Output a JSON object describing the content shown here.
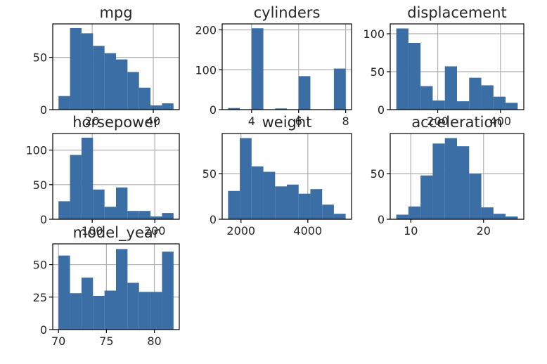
{
  "chart_data": [
    {
      "type": "bar",
      "title": "mpg",
      "bin_edges": [
        9.0,
        12.76,
        16.52,
        20.28,
        24.04,
        27.8,
        31.56,
        35.32,
        39.08,
        42.84,
        46.6
      ],
      "values": [
        13,
        78,
        73,
        61,
        54,
        48,
        36,
        21,
        4,
        6
      ],
      "xticks": [
        20,
        40
      ],
      "xtick_labels": [
        "20",
        "40"
      ],
      "yticks": [
        0,
        50
      ],
      "ytick_labels": [
        "0",
        "50"
      ],
      "xlim": [
        7.1,
        48.5
      ],
      "ylim": [
        0,
        82
      ],
      "grid": true
    },
    {
      "type": "bar",
      "title": "cylinders",
      "bin_edges": [
        3.0,
        3.5,
        4.0,
        4.5,
        5.0,
        5.5,
        6.0,
        6.5,
        7.0,
        7.5,
        8.0
      ],
      "values": [
        4,
        0,
        204,
        0,
        3,
        0,
        84,
        0,
        0,
        103
      ],
      "xticks": [
        4,
        6,
        8
      ],
      "xtick_labels": [
        "4",
        "6",
        "8"
      ],
      "yticks": [
        0,
        100,
        200
      ],
      "ytick_labels": [
        "0",
        "100",
        "200"
      ],
      "xlim": [
        2.75,
        8.25
      ],
      "ylim": [
        0,
        215
      ],
      "grid": true
    },
    {
      "type": "bar",
      "title": "displacement",
      "bin_edges": [
        68.0,
        106.7,
        145.4,
        184.1,
        222.8,
        261.5,
        300.2,
        338.9,
        377.6,
        416.3,
        455.0
      ],
      "values": [
        107,
        88,
        31,
        12,
        57,
        11,
        42,
        32,
        17,
        9
      ],
      "xticks": [
        200,
        400
      ],
      "xtick_labels": [
        "200",
        "400"
      ],
      "yticks": [
        0,
        50,
        100
      ],
      "ytick_labels": [
        "0",
        "50",
        "100"
      ],
      "xlim": [
        48.6,
        474.4
      ],
      "ylim": [
        0,
        113
      ],
      "grid": true
    },
    {
      "type": "bar",
      "title": "horsepower",
      "bin_edges": [
        46.0,
        64.4,
        82.8,
        101.2,
        119.6,
        138.0,
        156.4,
        174.8,
        193.2,
        211.6,
        230.0
      ],
      "values": [
        26,
        93,
        118,
        43,
        18,
        46,
        12,
        12,
        4,
        9
      ],
      "xticks": [
        100,
        200
      ],
      "xtick_labels": [
        "100",
        "200"
      ],
      "yticks": [
        0,
        50,
        100
      ],
      "ytick_labels": [
        "0",
        "50",
        "100"
      ],
      "xlim": [
        36.8,
        239.2
      ],
      "ylim": [
        0,
        124
      ],
      "grid": true
    },
    {
      "type": "bar",
      "title": "weight",
      "bin_edges": [
        1613,
        1965,
        2317,
        2669,
        3021,
        3373,
        3725,
        4077,
        4429,
        4781,
        5133
      ],
      "values": [
        31,
        89,
        58,
        52,
        36,
        38,
        28,
        33,
        16,
        6
      ],
      "xticks": [
        2000,
        4000
      ],
      "xtick_labels": [
        "2000",
        "4000"
      ],
      "yticks": [
        0,
        50
      ],
      "ytick_labels": [
        "0",
        "50"
      ],
      "xlim": [
        1437,
        5309
      ],
      "ylim": [
        0,
        94
      ],
      "grid": true
    },
    {
      "type": "bar",
      "title": "acceleration",
      "bin_edges": [
        8.0,
        9.67,
        11.34,
        13.01,
        14.68,
        16.35,
        18.02,
        19.69,
        21.36,
        23.03,
        24.7
      ],
      "values": [
        5,
        14,
        48,
        83,
        89,
        80,
        50,
        13,
        6,
        3
      ],
      "xticks": [
        10,
        20
      ],
      "xtick_labels": [
        "10",
        "20"
      ],
      "yticks": [
        0,
        50
      ],
      "ytick_labels": [
        "0",
        "50"
      ],
      "xlim": [
        7.17,
        25.53
      ],
      "ylim": [
        0,
        94
      ],
      "grid": true
    },
    {
      "type": "bar",
      "title": "model_year",
      "bin_edges": [
        70.0,
        71.2,
        72.4,
        73.6,
        74.8,
        76.0,
        77.2,
        78.4,
        79.6,
        80.8,
        82.0
      ],
      "values": [
        57,
        28,
        40,
        26,
        30,
        62,
        36,
        29,
        29,
        60
      ],
      "xticks": [
        70,
        75,
        80
      ],
      "xtick_labels": [
        "70",
        "75",
        "80"
      ],
      "yticks": [
        0,
        25,
        50
      ],
      "ytick_labels": [
        "0",
        "25",
        "50"
      ],
      "xlim": [
        69.4,
        82.6
      ],
      "ylim": [
        0,
        66
      ],
      "grid": true
    }
  ]
}
